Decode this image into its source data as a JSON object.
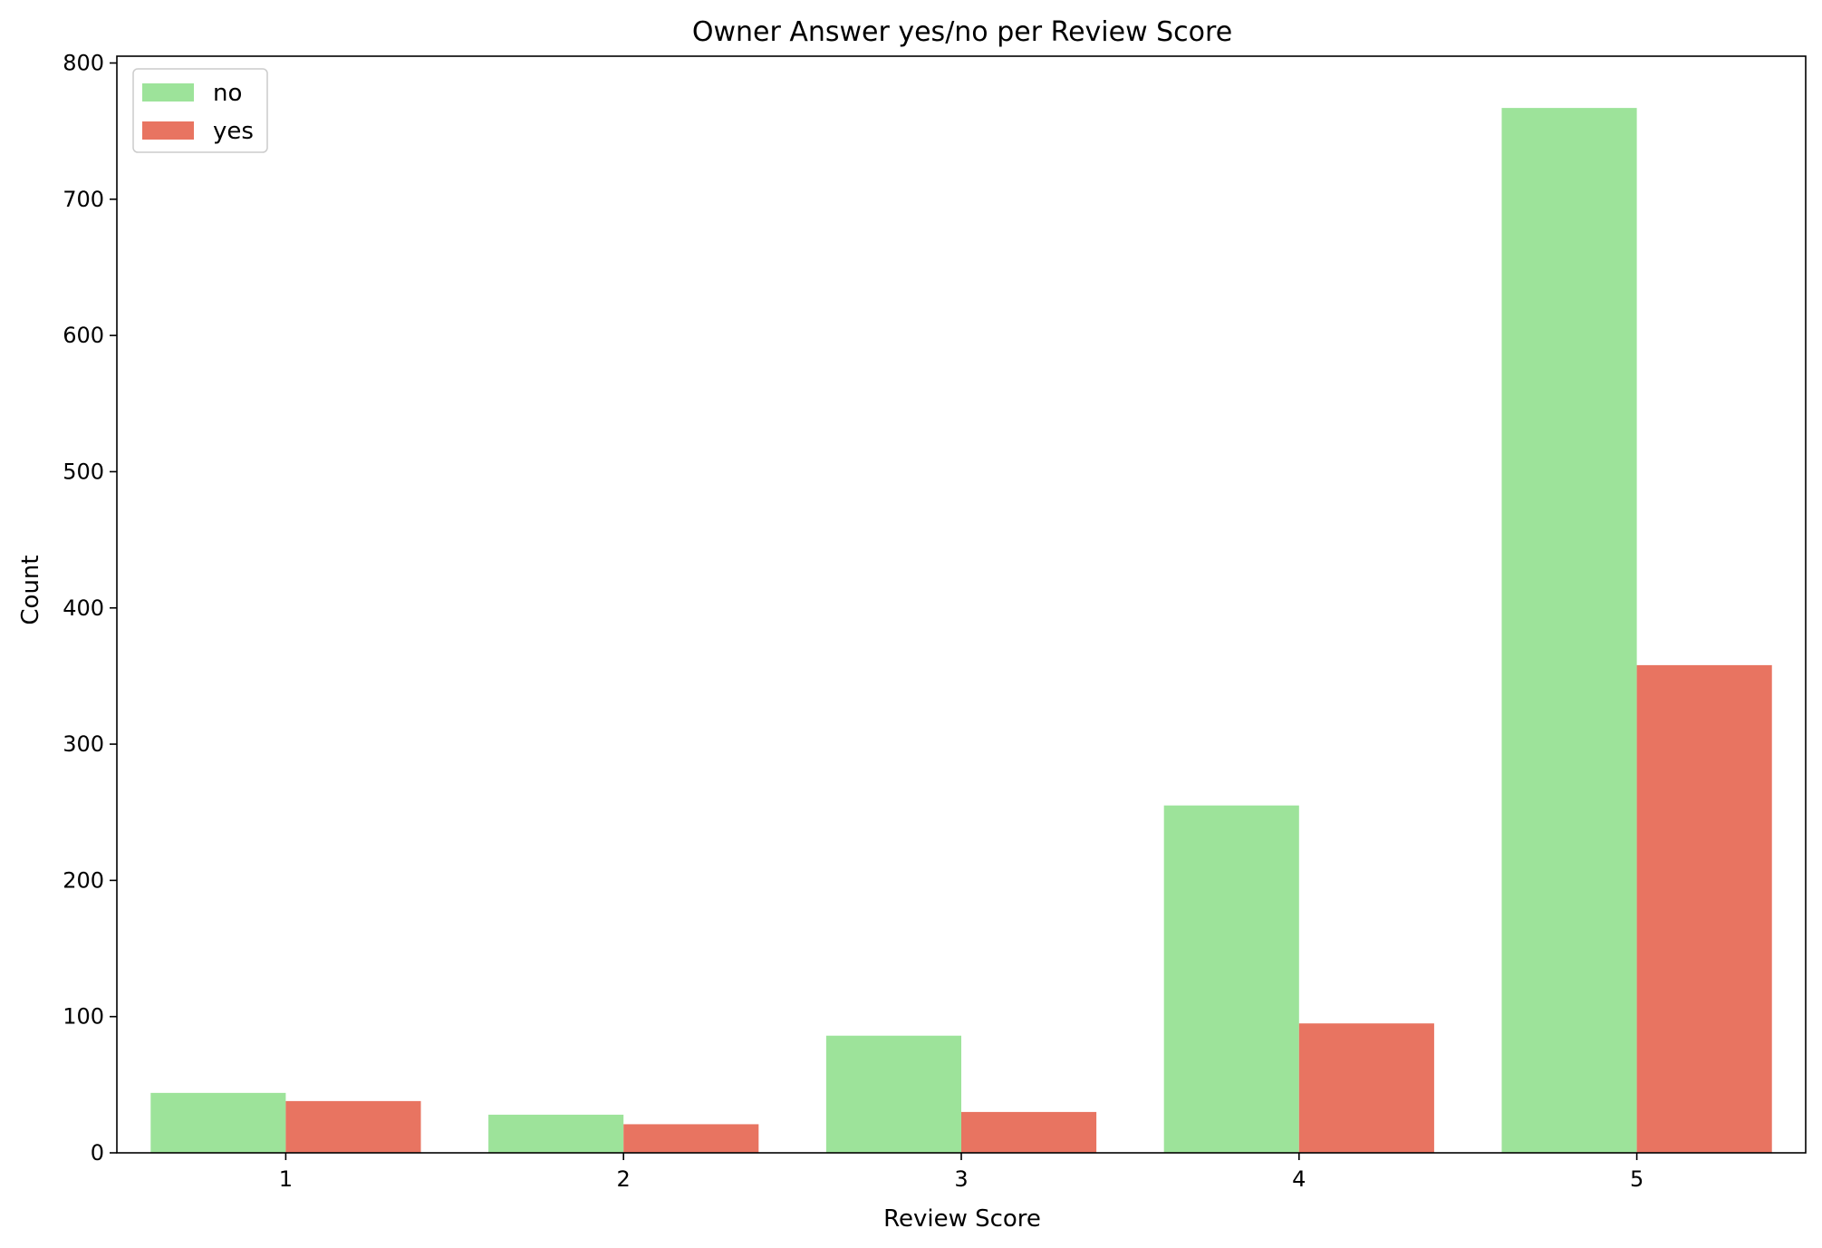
{
  "chart_data": {
    "type": "bar",
    "title": "Owner Answer yes/no per Review Score",
    "xlabel": "Review Score",
    "ylabel": "Count",
    "categories": [
      "1",
      "2",
      "3",
      "4",
      "5"
    ],
    "series": [
      {
        "name": "no",
        "color": "#9de39a",
        "values": [
          44,
          28,
          86,
          255,
          767
        ]
      },
      {
        "name": "yes",
        "color": "#e87461",
        "values": [
          38,
          21,
          30,
          95,
          358
        ]
      }
    ],
    "ylim": [
      0,
      805
    ],
    "yticks": [
      0,
      100,
      200,
      300,
      400,
      500,
      600,
      700,
      800
    ],
    "grid": false,
    "legend_position": "top-left"
  }
}
